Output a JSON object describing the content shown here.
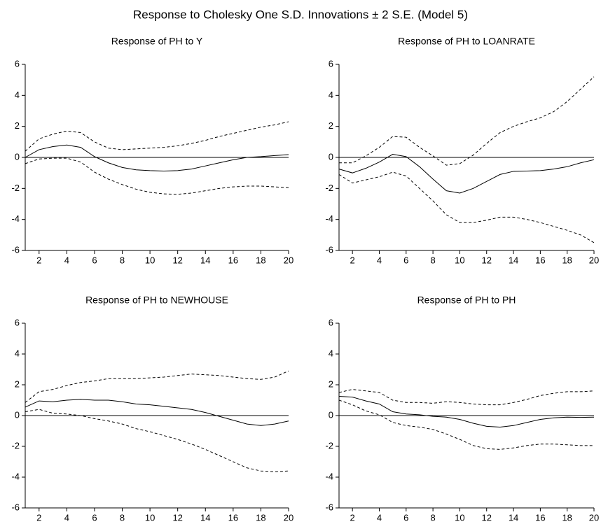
{
  "title": "Response to Cholesky One S.D. Innovations ± 2 S.E. (Model 5)",
  "chart_data": [
    {
      "type": "line",
      "title": "Response of PH to Y",
      "x": [
        1,
        2,
        3,
        4,
        5,
        6,
        7,
        8,
        9,
        10,
        11,
        12,
        13,
        14,
        15,
        16,
        17,
        18,
        19,
        20
      ],
      "xlim": [
        1,
        20
      ],
      "xticks": [
        2,
        4,
        6,
        8,
        10,
        12,
        14,
        16,
        18,
        20
      ],
      "ylim": [
        -6,
        6
      ],
      "yticks": [
        -6,
        -4,
        -2,
        0,
        2,
        4,
        6
      ],
      "hline": 0,
      "series": [
        {
          "color": "#000000",
          "dash": false,
          "values": [
            0,
            0.5,
            0.7,
            0.8,
            0.65,
            0.05,
            -0.35,
            -0.65,
            -0.8,
            -0.85,
            -0.88,
            -0.85,
            -0.75,
            -0.55,
            -0.35,
            -0.15,
            0,
            0.05,
            0.12,
            0.18
          ]
        },
        {
          "color": "#000000",
          "dash": true,
          "values": [
            0.4,
            1.2,
            1.5,
            1.7,
            1.6,
            1.0,
            0.6,
            0.5,
            0.55,
            0.6,
            0.65,
            0.75,
            0.9,
            1.1,
            1.35,
            1.55,
            1.75,
            1.95,
            2.1,
            2.3
          ]
        },
        {
          "color": "#000000",
          "dash": true,
          "values": [
            -0.4,
            -0.1,
            -0.05,
            -0.05,
            -0.3,
            -0.95,
            -1.4,
            -1.75,
            -2.05,
            -2.25,
            -2.35,
            -2.38,
            -2.3,
            -2.15,
            -2.0,
            -1.9,
            -1.85,
            -1.85,
            -1.9,
            -1.95
          ]
        }
      ]
    },
    {
      "type": "line",
      "title": "Response of PH to LOANRATE",
      "x": [
        1,
        2,
        3,
        4,
        5,
        6,
        7,
        8,
        9,
        10,
        11,
        12,
        13,
        14,
        15,
        16,
        17,
        18,
        19,
        20
      ],
      "xlim": [
        1,
        20
      ],
      "xticks": [
        2,
        4,
        6,
        8,
        10,
        12,
        14,
        16,
        18,
        20
      ],
      "ylim": [
        -6,
        6
      ],
      "yticks": [
        -6,
        -4,
        -2,
        0,
        2,
        4,
        6
      ],
      "hline": 0,
      "series": [
        {
          "color": "#000000",
          "dash": false,
          "values": [
            -0.75,
            -1.0,
            -0.7,
            -0.3,
            0.2,
            0.05,
            -0.6,
            -1.4,
            -2.15,
            -2.3,
            -2.0,
            -1.55,
            -1.1,
            -0.9,
            -0.88,
            -0.85,
            -0.75,
            -0.6,
            -0.35,
            -0.15
          ]
        },
        {
          "color": "#000000",
          "dash": true,
          "values": [
            -0.35,
            -0.35,
            0.1,
            0.65,
            1.35,
            1.3,
            0.65,
            0.1,
            -0.5,
            -0.4,
            0.15,
            0.9,
            1.6,
            2.0,
            2.3,
            2.55,
            2.95,
            3.6,
            4.4,
            5.2
          ]
        },
        {
          "color": "#000000",
          "dash": true,
          "values": [
            -1.1,
            -1.65,
            -1.45,
            -1.25,
            -0.95,
            -1.2,
            -2.0,
            -2.8,
            -3.7,
            -4.2,
            -4.2,
            -4.05,
            -3.85,
            -3.85,
            -4.0,
            -4.2,
            -4.45,
            -4.7,
            -5.0,
            -5.5
          ]
        }
      ]
    },
    {
      "type": "line",
      "title": "Response of PH to NEWHOUSE",
      "x": [
        1,
        2,
        3,
        4,
        5,
        6,
        7,
        8,
        9,
        10,
        11,
        12,
        13,
        14,
        15,
        16,
        17,
        18,
        19,
        20
      ],
      "xlim": [
        1,
        20
      ],
      "xticks": [
        2,
        4,
        6,
        8,
        10,
        12,
        14,
        16,
        18,
        20
      ],
      "ylim": [
        -6,
        6
      ],
      "yticks": [
        -6,
        -4,
        -2,
        0,
        2,
        4,
        6
      ],
      "hline": 0,
      "series": [
        {
          "color": "#000000",
          "dash": false,
          "values": [
            0.55,
            0.95,
            0.9,
            1.0,
            1.05,
            1.0,
            1.0,
            0.9,
            0.75,
            0.7,
            0.6,
            0.5,
            0.4,
            0.2,
            -0.05,
            -0.3,
            -0.55,
            -0.65,
            -0.55,
            -0.35
          ]
        },
        {
          "color": "#000000",
          "dash": true,
          "values": [
            0.85,
            1.55,
            1.7,
            1.95,
            2.15,
            2.25,
            2.4,
            2.4,
            2.4,
            2.45,
            2.5,
            2.6,
            2.7,
            2.65,
            2.6,
            2.5,
            2.4,
            2.35,
            2.5,
            2.9
          ]
        },
        {
          "color": "#000000",
          "dash": true,
          "values": [
            0.25,
            0.4,
            0.15,
            0.1,
            0.0,
            -0.2,
            -0.35,
            -0.55,
            -0.85,
            -1.05,
            -1.3,
            -1.55,
            -1.85,
            -2.2,
            -2.6,
            -3.0,
            -3.4,
            -3.6,
            -3.65,
            -3.6
          ]
        }
      ]
    },
    {
      "type": "line",
      "title": "Response of PH to PH",
      "x": [
        1,
        2,
        3,
        4,
        5,
        6,
        7,
        8,
        9,
        10,
        11,
        12,
        13,
        14,
        15,
        16,
        17,
        18,
        19,
        20
      ],
      "xlim": [
        1,
        20
      ],
      "xticks": [
        2,
        4,
        6,
        8,
        10,
        12,
        14,
        16,
        18,
        20
      ],
      "ylim": [
        -6,
        6
      ],
      "yticks": [
        -6,
        -4,
        -2,
        0,
        2,
        4,
        6
      ],
      "hline": 0,
      "series": [
        {
          "color": "#000000",
          "dash": false,
          "values": [
            1.25,
            1.2,
            0.95,
            0.75,
            0.25,
            0.1,
            0.05,
            -0.05,
            -0.1,
            -0.25,
            -0.5,
            -0.7,
            -0.75,
            -0.65,
            -0.45,
            -0.25,
            -0.15,
            -0.1,
            -0.12,
            -0.1
          ]
        },
        {
          "color": "#000000",
          "dash": true,
          "values": [
            1.5,
            1.7,
            1.6,
            1.5,
            1.0,
            0.85,
            0.85,
            0.8,
            0.9,
            0.85,
            0.75,
            0.7,
            0.7,
            0.85,
            1.05,
            1.3,
            1.45,
            1.55,
            1.55,
            1.6
          ]
        },
        {
          "color": "#000000",
          "dash": true,
          "values": [
            1.0,
            0.7,
            0.3,
            0.05,
            -0.45,
            -0.65,
            -0.75,
            -0.9,
            -1.2,
            -1.55,
            -1.95,
            -2.15,
            -2.2,
            -2.1,
            -1.95,
            -1.85,
            -1.85,
            -1.9,
            -1.95,
            -1.95
          ]
        }
      ]
    }
  ]
}
